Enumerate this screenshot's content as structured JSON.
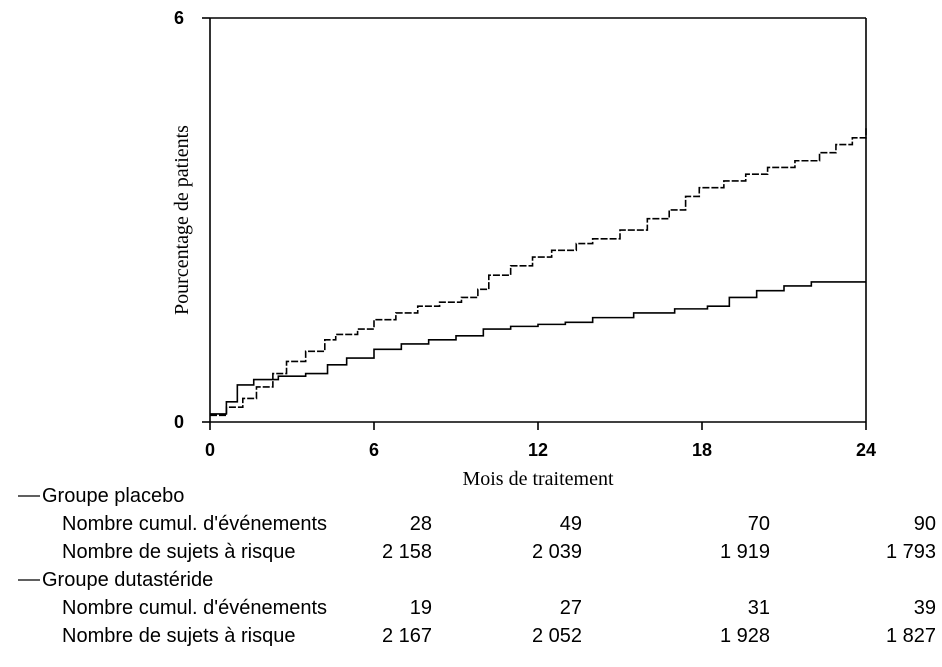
{
  "chart_data": {
    "type": "line",
    "xlabel": "Mois de traitement",
    "ylabel": "Pourcentage de patients",
    "xlim": [
      0,
      24
    ],
    "ylim": [
      0,
      6
    ],
    "x_ticks": [
      "0",
      "6",
      "12",
      "18",
      "24"
    ],
    "y_ticks": [
      "0",
      "6"
    ],
    "grid": false,
    "series": [
      {
        "name": "Groupe placebo",
        "style": "dashed",
        "points": [
          [
            0,
            0.1
          ],
          [
            0.6,
            0.22
          ],
          [
            1.2,
            0.35
          ],
          [
            1.7,
            0.52
          ],
          [
            2.3,
            0.72
          ],
          [
            2.8,
            0.9
          ],
          [
            3.5,
            1.05
          ],
          [
            4.2,
            1.22
          ],
          [
            4.6,
            1.3
          ],
          [
            5.4,
            1.38
          ],
          [
            6.0,
            1.52
          ],
          [
            6.8,
            1.62
          ],
          [
            7.6,
            1.72
          ],
          [
            8.4,
            1.78
          ],
          [
            9.2,
            1.85
          ],
          [
            9.8,
            1.97
          ],
          [
            10.2,
            2.18
          ],
          [
            11.0,
            2.32
          ],
          [
            11.8,
            2.45
          ],
          [
            12.5,
            2.55
          ],
          [
            13.4,
            2.65
          ],
          [
            14.0,
            2.72
          ],
          [
            15.0,
            2.85
          ],
          [
            16.0,
            3.02
          ],
          [
            16.8,
            3.15
          ],
          [
            17.4,
            3.35
          ],
          [
            17.9,
            3.48
          ],
          [
            18.8,
            3.58
          ],
          [
            19.6,
            3.68
          ],
          [
            20.4,
            3.78
          ],
          [
            21.4,
            3.88
          ],
          [
            22.3,
            4.0
          ],
          [
            22.9,
            4.12
          ],
          [
            23.5,
            4.22
          ],
          [
            24,
            4.38
          ]
        ]
      },
      {
        "name": "Groupe dutastéride",
        "style": "solid",
        "points": [
          [
            0,
            0.12
          ],
          [
            0.6,
            0.3
          ],
          [
            1.0,
            0.55
          ],
          [
            1.6,
            0.63
          ],
          [
            2.5,
            0.68
          ],
          [
            3.5,
            0.72
          ],
          [
            4.3,
            0.85
          ],
          [
            5.0,
            0.95
          ],
          [
            6.0,
            1.08
          ],
          [
            7.0,
            1.16
          ],
          [
            8.0,
            1.22
          ],
          [
            9.0,
            1.28
          ],
          [
            10.0,
            1.38
          ],
          [
            11.0,
            1.42
          ],
          [
            12.0,
            1.45
          ],
          [
            13.0,
            1.48
          ],
          [
            14.0,
            1.55
          ],
          [
            15.5,
            1.62
          ],
          [
            17.0,
            1.68
          ],
          [
            18.2,
            1.72
          ],
          [
            19.0,
            1.85
          ],
          [
            20.0,
            1.95
          ],
          [
            21.0,
            2.02
          ],
          [
            22.0,
            2.08
          ],
          [
            23.0,
            2.08
          ],
          [
            24,
            2.08
          ]
        ]
      }
    ]
  },
  "risk_table": {
    "time_points": [
      "0",
      "6",
      "12",
      "18",
      "24"
    ],
    "groups": [
      {
        "name": "Groupe placebo",
        "rows": [
          {
            "label": "Nombre cumul. d'événements",
            "values": [
              "28",
              "49",
              "70",
              "90"
            ]
          },
          {
            "label": "Nombre de sujets à risque",
            "values": [
              "2 158",
              "2 039",
              "1 919",
              "1 793"
            ]
          }
        ]
      },
      {
        "name": "Groupe dutastéride",
        "rows": [
          {
            "label": "Nombre cumul. d'événements",
            "values": [
              "19",
              "27",
              "31",
              "39"
            ]
          },
          {
            "label": "Nombre de sujets à risque",
            "values": [
              "2 167",
              "2 052",
              "1 928",
              "1 827"
            ]
          }
        ]
      }
    ]
  }
}
